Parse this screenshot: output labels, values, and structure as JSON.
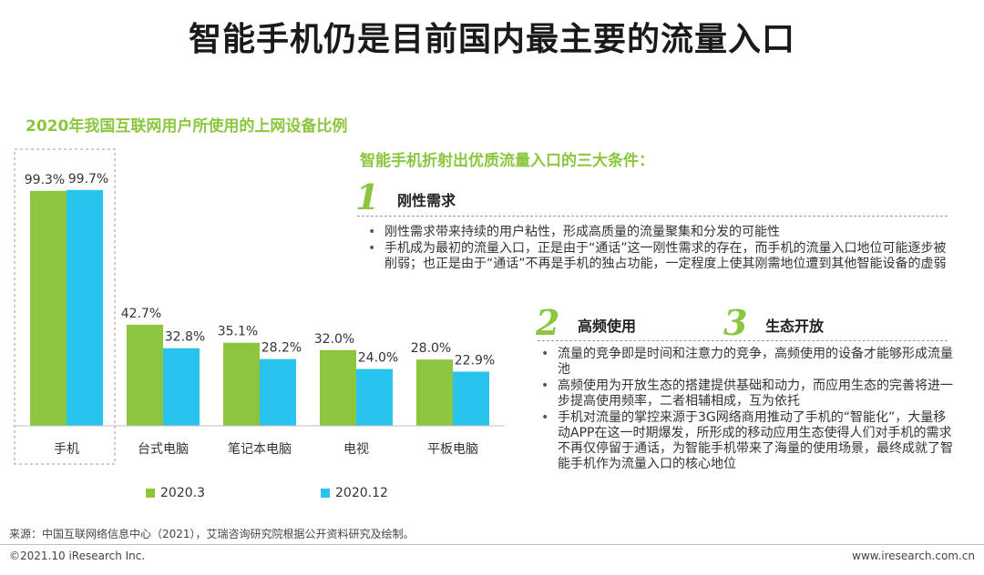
{
  "title": "智能手机仍是目前国内最主要的流量入口",
  "chart_data": {
    "type": "bar",
    "title": "2020年我国互联网用户所使用的上网设备比例",
    "categories": [
      "手机",
      "台式电脑",
      "笔记本电脑",
      "电视",
      "平板电脑"
    ],
    "series": [
      {
        "name": "2020.3",
        "values": [
          99.3,
          42.7,
          35.1,
          32.0,
          28.0
        ],
        "labels": [
          "99.3%",
          "42.7%",
          "35.1%",
          "32.0%",
          "28.0%"
        ],
        "color": "#8cc63f"
      },
      {
        "name": "2020.12",
        "values": [
          99.7,
          32.8,
          28.2,
          24.0,
          22.9
        ],
        "labels": [
          "99.7%",
          "32.8%",
          "28.2%",
          "24.0%",
          "22.9%"
        ],
        "color": "#29c4ee"
      }
    ],
    "ylim": [
      0,
      100
    ],
    "grid": false,
    "highlight_category": "手机",
    "legend": "bottom"
  },
  "conditions": {
    "title": "智能手机折射出优质流量入口的三大条件：",
    "items": [
      {
        "number": "1",
        "label": "刚性需求",
        "bullets": [
          "刚性需求带来持续的用户粘性，形成高质量的流量聚集和分发的可能性",
          "手机成为最初的流量入口，正是由于“通话”这一刚性需求的存在，而手机的流量入口地位可能逐步被削弱；也正是由于“通话”不再是手机的独占功能，一定程度上使其刚需地位遭到其他智能设备的虚弱"
        ]
      },
      {
        "number": "2",
        "label": "高频使用",
        "bullets": [
          "流量的竞争即是时间和注意力的竞争，高频使用的设备才能够形成流量池",
          "高频使用为开放生态的搭建提供基础和动力，而应用生态的完善将进一步提高使用频率，二者相辅相成，互为依托",
          "手机对流量的掌控来源于3G网络商用推动了手机的“智能化”，大量移动APP在这一时期爆发，所形成的移动应用生态使得人们对手机的需求不再仅停留于通话，为智能手机带来了海量的使用场景，最终成就了智能手机作为流量入口的核心地位"
        ]
      },
      {
        "number": "3",
        "label": "生态开放"
      }
    ]
  },
  "footer": {
    "source": "来源：中国互联网络信息中心（2021），艾瑞咨询研究院根据公开资料研究及绘制。",
    "copyright": "©2021.10 iResearch Inc.",
    "website": "www.iresearch.com.cn"
  }
}
